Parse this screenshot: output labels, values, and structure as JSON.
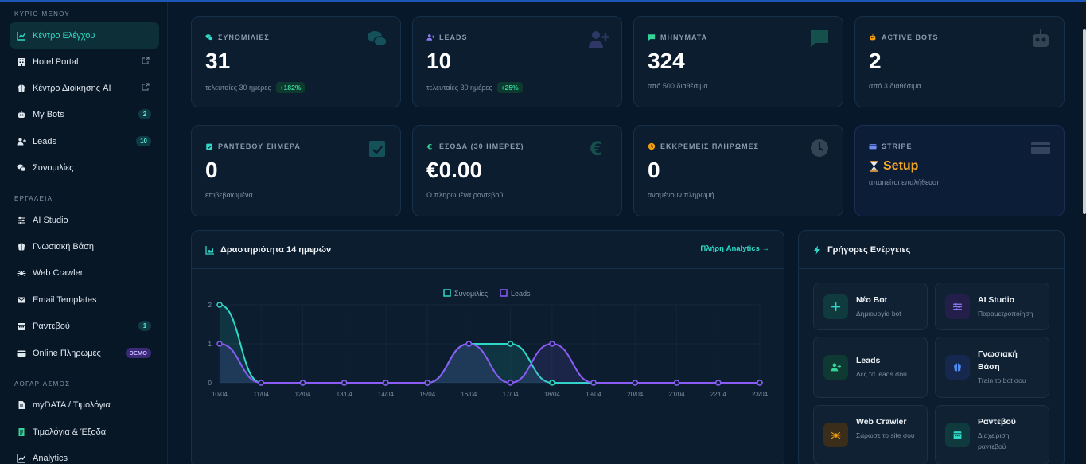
{
  "sidebar": {
    "sections": {
      "main": "ΚΥΡΙΟ ΜΕΝΟΥ",
      "tools": "ΕΡΓΑΛΕΙΑ",
      "account": "ΛΟΓΑΡΙΑΣΜΟΣ"
    },
    "items": [
      {
        "label": "Κέντρο Ελέγχου",
        "icon": "chart-line-icon"
      },
      {
        "label": "Hotel Portal",
        "icon": "building-icon"
      },
      {
        "label": "Κέντρο Διοίκησης AI",
        "icon": "brain-icon"
      },
      {
        "label": "My Bots",
        "icon": "robot-icon",
        "badge": "2"
      },
      {
        "label": "Leads",
        "icon": "user-plus-icon",
        "badge": "10"
      },
      {
        "label": "Συνομιλίες",
        "icon": "comments-icon"
      },
      {
        "label": "AI Studio",
        "icon": "sliders-icon"
      },
      {
        "label": "Γνωσιακή Βάση",
        "icon": "brain-icon"
      },
      {
        "label": "Web Crawler",
        "icon": "spider-icon"
      },
      {
        "label": "Email Templates",
        "icon": "envelope-icon"
      },
      {
        "label": "Ραντεβού",
        "icon": "calendar-icon",
        "badge": "1"
      },
      {
        "label": "Online Πληρωμές",
        "icon": "credit-card-icon",
        "badge": "DEMO"
      },
      {
        "label": "myDATA / Τιμολόγια",
        "icon": "file-icon"
      },
      {
        "label": "Τιμολόγια & Έξοδα",
        "icon": "receipt-icon"
      },
      {
        "label": "Analytics",
        "icon": "chart-icon"
      }
    ]
  },
  "stats": [
    {
      "label": "ΣΥΝΟΜΙΛΙΕΣ",
      "value": "31",
      "sub": "τελευταίες 30 ημέρες",
      "pct": "+182%",
      "icon": "comments-icon"
    },
    {
      "label": "LEADS",
      "value": "10",
      "sub": "τελευταίες 30 ημέρες",
      "pct": "+25%",
      "icon": "user-plus-icon"
    },
    {
      "label": "ΜΗΝΥΜΑΤΑ",
      "value": "324",
      "sub": "από 500 διαθέσιμα",
      "icon": "message-icon"
    },
    {
      "label": "ACTIVE BOTS",
      "value": "2",
      "sub": "από 3 διαθέσιμα",
      "icon": "robot-icon"
    },
    {
      "label": "ΡΑΝΤΕΒΟΥ ΣΗΜΕΡΑ",
      "value": "0",
      "sub": "επιβεβαιωμένα",
      "icon": "calendar-check-icon"
    },
    {
      "label": "ΕΣΟΔΑ (30 ΗΜΕΡΕΣ)",
      "value": "€0.00",
      "sub": "Ο πληρωμένα ραντεβού",
      "icon": "euro-icon"
    },
    {
      "label": "ΕΚΚΡΕΜΕΙΣ ΠΛΗΡΩΜΕΣ",
      "value": "0",
      "sub": "αναμένουν πληρωμή",
      "icon": "clock-icon"
    },
    {
      "label": "STRIPE",
      "value": "Setup",
      "sub": "απαιτείται επαλήθευση",
      "icon": "credit-card-icon",
      "value_icon": "hourglass-icon"
    }
  ],
  "activity": {
    "title": "Δραστηριότητα 14 ημερών",
    "link": "Πλήρη Analytics →"
  },
  "quick": {
    "title": "Γρήγορες Ενέργειες",
    "actions": [
      {
        "title": "Νέο Bot",
        "sub": "Δημιουργία bot",
        "icon": "plus-icon",
        "color": "#2fd9c7"
      },
      {
        "title": "AI Studio",
        "sub": "Παραμετροποίηση",
        "icon": "sliders-icon",
        "color": "#8b7cf6"
      },
      {
        "title": "Leads",
        "sub": "Δες τα leads σου",
        "icon": "user-plus-icon",
        "color": "#34d399"
      },
      {
        "title": "Γνωσιακή Βάση",
        "sub": "Train το bot σου",
        "icon": "brain-icon",
        "color": "#4f8ef7"
      },
      {
        "title": "Web Crawler",
        "sub": "Σάρωσε το site σου",
        "icon": "spider-icon",
        "color": "#f59e0b"
      },
      {
        "title": "Ραντεβού",
        "sub": "Διαχείριση ραντεβού",
        "icon": "calendar-icon",
        "color": "#2fd9c7"
      }
    ]
  },
  "chart_data": {
    "type": "line",
    "x": [
      "10/04",
      "11/04",
      "12/04",
      "13/04",
      "14/04",
      "15/04",
      "16/04",
      "17/04",
      "18/04",
      "19/04",
      "20/04",
      "21/04",
      "22/04",
      "23/04"
    ],
    "series": [
      {
        "name": "Συνομιλίες",
        "values": [
          2,
          0,
          0,
          0,
          0,
          0,
          1,
          1,
          0,
          0,
          0,
          0,
          0,
          0
        ],
        "color": "#2fd9c7"
      },
      {
        "name": "Leads",
        "values": [
          1,
          0,
          0,
          0,
          0,
          0,
          1,
          0,
          1,
          0,
          0,
          0,
          0,
          0
        ],
        "color": "#8b5cf6"
      }
    ],
    "y_ticks": [
      "0",
      "1",
      "2"
    ],
    "ylim": [
      0,
      2
    ],
    "grid": true,
    "legend": "top-center"
  }
}
